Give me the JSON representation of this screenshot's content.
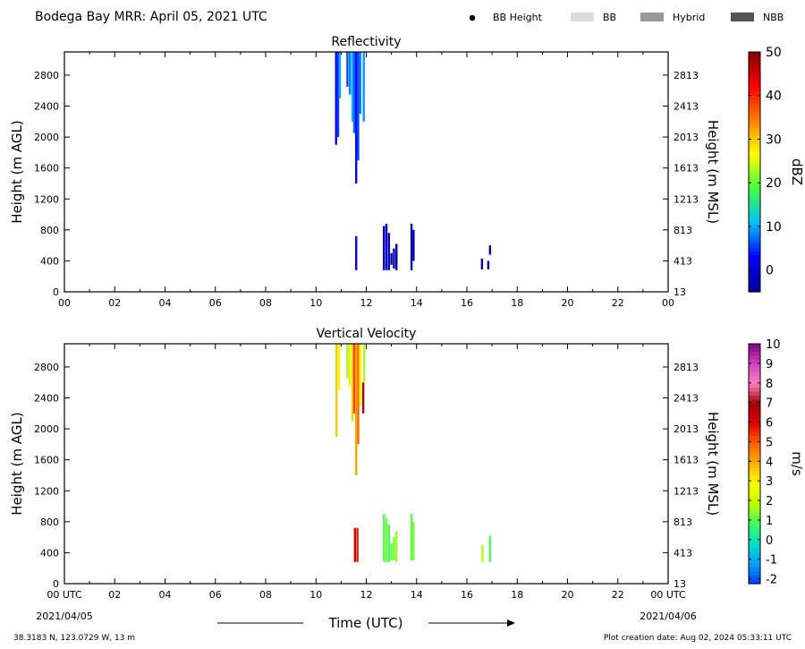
{
  "header": {
    "title": "Bodega Bay MRR:  April 05, 2021 UTC",
    "legend": [
      {
        "label": "BB Height",
        "kind": "dot",
        "color": "#000000"
      },
      {
        "label": "BB",
        "kind": "swatch",
        "color": "#dcdcdc"
      },
      {
        "label": "Hybrid",
        "kind": "swatch",
        "color": "#999999"
      },
      {
        "label": "NBB",
        "kind": "swatch",
        "color": "#555555"
      }
    ]
  },
  "chart_data": [
    {
      "type": "heatmap",
      "title": "Reflectivity",
      "ylabel": "Height (m AGL)",
      "ylabel_right": "Height (m MSL)",
      "colorbar_label": "dBZ",
      "xlim": [
        0,
        24
      ],
      "ylim": [
        0,
        3100
      ],
      "x_ticks": [
        "00",
        "02",
        "04",
        "06",
        "08",
        "10",
        "12",
        "14",
        "16",
        "18",
        "20",
        "22",
        "00"
      ],
      "y_ticks": [
        0,
        400,
        800,
        1200,
        1600,
        2000,
        2400,
        2800
      ],
      "y_ticks_right": [
        "13",
        "413",
        "813",
        "1213",
        "1613",
        "2013",
        "2413",
        "2813"
      ],
      "colorbar": {
        "min": -5,
        "max": 50,
        "ticks": [
          0,
          10,
          20,
          30,
          40,
          50
        ],
        "colors": [
          "#00008f",
          "#0000ff",
          "#00bfff",
          "#40ff40",
          "#ffff00",
          "#ff8000",
          "#ff0000",
          "#800000"
        ]
      },
      "cells": [
        {
          "x": 10.8,
          "y0": 1900,
          "y1": 3100,
          "value": 3
        },
        {
          "x": 10.88,
          "y0": 2000,
          "y1": 3100,
          "value": 5
        },
        {
          "x": 10.95,
          "y0": 2500,
          "y1": 3100,
          "value": 10
        },
        {
          "x": 11.25,
          "y0": 2650,
          "y1": 3100,
          "value": 6
        },
        {
          "x": 11.35,
          "y0": 2550,
          "y1": 3100,
          "value": 8
        },
        {
          "x": 11.45,
          "y0": 2200,
          "y1": 3100,
          "value": 11
        },
        {
          "x": 11.52,
          "y0": 2050,
          "y1": 3100,
          "value": 7
        },
        {
          "x": 11.6,
          "y0": 1400,
          "y1": 3100,
          "value": 2
        },
        {
          "x": 11.68,
          "y0": 1700,
          "y1": 3100,
          "value": 6
        },
        {
          "x": 11.76,
          "y0": 2300,
          "y1": 3100,
          "value": 8
        },
        {
          "x": 11.9,
          "y0": 2200,
          "y1": 3100,
          "value": 9
        },
        {
          "x": 11.6,
          "y0": 280,
          "y1": 720,
          "value": 2
        },
        {
          "x": 12.7,
          "y0": 280,
          "y1": 850,
          "value": -2
        },
        {
          "x": 12.8,
          "y0": 280,
          "y1": 880,
          "value": -1
        },
        {
          "x": 12.9,
          "y0": 280,
          "y1": 760,
          "value": -2
        },
        {
          "x": 13.0,
          "y0": 350,
          "y1": 500,
          "value": -3
        },
        {
          "x": 13.1,
          "y0": 300,
          "y1": 560,
          "value": -3
        },
        {
          "x": 13.2,
          "y0": 280,
          "y1": 620,
          "value": -4
        },
        {
          "x": 13.8,
          "y0": 280,
          "y1": 880,
          "value": -2
        },
        {
          "x": 13.88,
          "y0": 400,
          "y1": 800,
          "value": -2
        },
        {
          "x": 16.6,
          "y0": 290,
          "y1": 430,
          "value": -4
        },
        {
          "x": 16.85,
          "y0": 290,
          "y1": 400,
          "value": -4
        },
        {
          "x": 16.92,
          "y0": 480,
          "y1": 600,
          "value": -4
        }
      ]
    },
    {
      "type": "heatmap",
      "title": "Vertical Velocity",
      "ylabel": "Height (m AGL)",
      "ylabel_right": "Height (m MSL)",
      "colorbar_label": "m/s",
      "xlim": [
        0,
        24
      ],
      "ylim": [
        0,
        3100
      ],
      "x_ticks": [
        "00 UTC",
        "02",
        "04",
        "06",
        "08",
        "10",
        "12",
        "14",
        "16",
        "18",
        "20",
        "22",
        "00 UTC"
      ],
      "x_dates": [
        "2021/04/05",
        "2021/04/06"
      ],
      "xlabel": "Time (UTC)",
      "y_ticks": [
        0,
        400,
        800,
        1200,
        1600,
        2000,
        2400,
        2800
      ],
      "y_ticks_right": [
        "13",
        "413",
        "813",
        "1213",
        "1613",
        "2013",
        "2413",
        "2813"
      ],
      "colorbar": {
        "min": -2.25,
        "max": 10,
        "ticks": [
          -2,
          -1,
          0,
          1,
          2,
          3,
          4,
          5,
          6,
          7,
          8,
          9,
          10
        ],
        "colors": [
          "#0040ff",
          "#00a0ff",
          "#00e0c0",
          "#40ff60",
          "#c0ff00",
          "#ffff00",
          "#ffb000",
          "#ff6000",
          "#e00000",
          "#a00000",
          "#ff80c0",
          "#d040c0",
          "#800080"
        ]
      },
      "cells": [
        {
          "x": 10.82,
          "y0": 1900,
          "y1": 3100,
          "value": 3.6
        },
        {
          "x": 10.92,
          "y0": 2500,
          "y1": 3100,
          "value": 2.6
        },
        {
          "x": 11.25,
          "y0": 2650,
          "y1": 3100,
          "value": 1.6
        },
        {
          "x": 11.35,
          "y0": 2550,
          "y1": 3100,
          "value": 2.2
        },
        {
          "x": 11.45,
          "y0": 2100,
          "y1": 3100,
          "value": 3.4
        },
        {
          "x": 11.52,
          "y0": 2200,
          "y1": 3100,
          "value": 5.2
        },
        {
          "x": 11.6,
          "y0": 1400,
          "y1": 3100,
          "value": 4.0
        },
        {
          "x": 11.68,
          "y0": 1800,
          "y1": 3100,
          "value": 4.8
        },
        {
          "x": 11.76,
          "y0": 2300,
          "y1": 3100,
          "value": 3.0
        },
        {
          "x": 11.88,
          "y0": 2200,
          "y1": 2600,
          "value": 6.5
        },
        {
          "x": 11.92,
          "y0": 2600,
          "y1": 3100,
          "value": 1.6
        },
        {
          "x": 11.55,
          "y0": 280,
          "y1": 720,
          "value": 6.2
        },
        {
          "x": 11.65,
          "y0": 280,
          "y1": 720,
          "value": 5.6
        },
        {
          "x": 12.7,
          "y0": 280,
          "y1": 900,
          "value": 1.0
        },
        {
          "x": 12.8,
          "y0": 280,
          "y1": 850,
          "value": 1.2
        },
        {
          "x": 12.9,
          "y0": 280,
          "y1": 760,
          "value": 0.8
        },
        {
          "x": 13.0,
          "y0": 300,
          "y1": 520,
          "value": 1.1
        },
        {
          "x": 13.1,
          "y0": 300,
          "y1": 600,
          "value": 1.2
        },
        {
          "x": 13.2,
          "y0": 280,
          "y1": 680,
          "value": 1.5
        },
        {
          "x": 13.8,
          "y0": 300,
          "y1": 900,
          "value": 1.0
        },
        {
          "x": 13.88,
          "y0": 300,
          "y1": 800,
          "value": 1.3
        },
        {
          "x": 16.62,
          "y0": 280,
          "y1": 500,
          "value": 1.8
        },
        {
          "x": 16.92,
          "y0": 280,
          "y1": 620,
          "value": 0.9
        }
      ]
    }
  ],
  "footer": {
    "location": "38.3183 N, 123.0729 W, 13 m",
    "created": "Plot creation date: Aug 02, 2024 05:33:11 UTC"
  }
}
